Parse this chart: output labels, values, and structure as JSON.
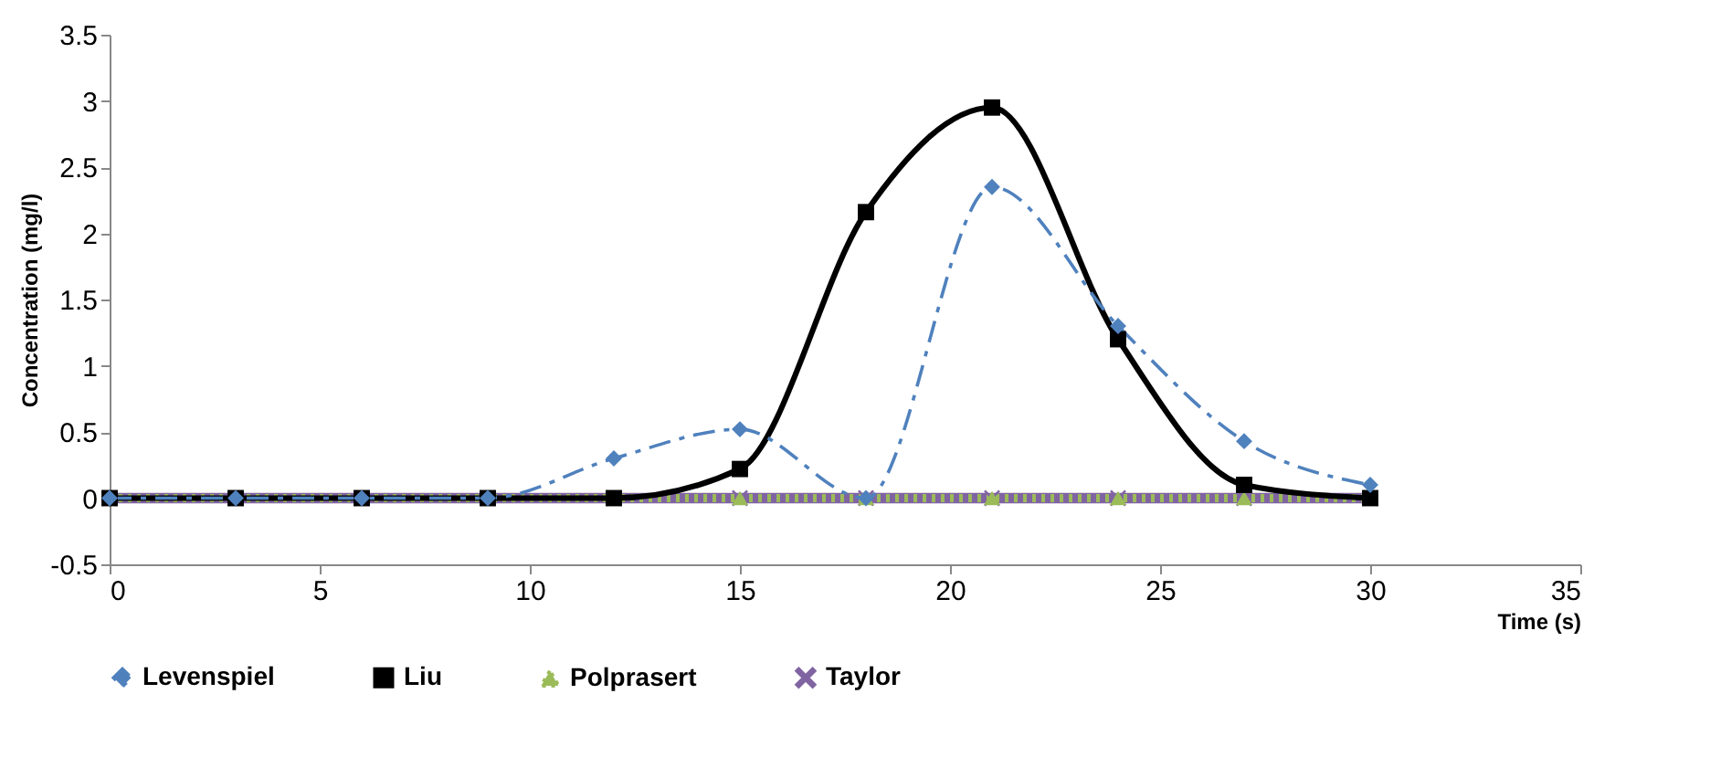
{
  "chart_data": {
    "type": "line",
    "xlabel": "Time (s)",
    "ylabel": "Concentration  (mg/l)",
    "x": [
      0,
      3,
      6,
      9,
      12,
      15,
      18,
      21,
      24,
      27,
      30
    ],
    "xlim": [
      0,
      35
    ],
    "xticks": [
      0,
      5,
      10,
      15,
      20,
      25,
      30,
      35
    ],
    "ylim": [
      -0.5,
      3.5
    ],
    "yticks": [
      -0.5,
      0,
      0.5,
      1,
      1.5,
      2,
      2.5,
      3,
      3.5
    ],
    "grid": false,
    "legend": "bottom",
    "series": [
      {
        "name": "Levenspiel",
        "color": "#4f81bd",
        "marker": "diamond",
        "line_style": "dashed",
        "values": [
          0,
          0,
          0,
          0,
          0.3,
          0.52,
          0,
          2.35,
          1.3,
          0.43,
          0.1
        ]
      },
      {
        "name": "Liu",
        "color": "#000000",
        "marker": "square",
        "line_style": "solid",
        "values": [
          0,
          0,
          0,
          0,
          0,
          0.22,
          2.16,
          2.95,
          1.2,
          0.1,
          0
        ]
      },
      {
        "name": "Polprasert",
        "color": "#9bbb59",
        "marker": "triangle",
        "line_style": "dotted",
        "values": [
          0,
          0,
          0,
          0,
          0,
          0,
          0,
          0,
          0,
          0,
          0
        ]
      },
      {
        "name": "Taylor",
        "color": "#8064a2",
        "marker": "cross",
        "line_style": "solid",
        "values": [
          0,
          0,
          0,
          0,
          0,
          0,
          0,
          0,
          0,
          0,
          0
        ]
      }
    ]
  }
}
